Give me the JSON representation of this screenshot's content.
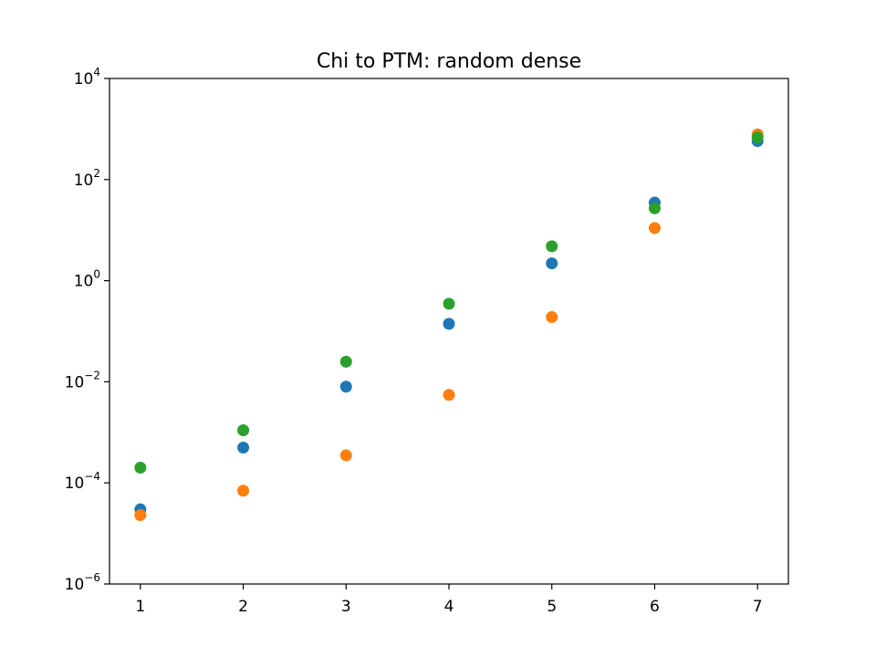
{
  "chart_data": {
    "type": "scatter",
    "title": "Chi to PTM: random dense",
    "xlabel": "",
    "ylabel": "",
    "x": [
      1,
      2,
      3,
      4,
      5,
      6,
      7
    ],
    "xlim": [
      0.7,
      7.3
    ],
    "ylim": [
      1e-06,
      10000
    ],
    "yscale": "log",
    "grid": false,
    "xticks": [
      {
        "value": 1,
        "label": "1"
      },
      {
        "value": 2,
        "label": "2"
      },
      {
        "value": 3,
        "label": "3"
      },
      {
        "value": 4,
        "label": "4"
      },
      {
        "value": 5,
        "label": "5"
      },
      {
        "value": 6,
        "label": "6"
      },
      {
        "value": 7,
        "label": "7"
      }
    ],
    "yticks": [
      {
        "value": 1e-06,
        "base": "10",
        "exp": "−6"
      },
      {
        "value": 0.0001,
        "base": "10",
        "exp": "−4"
      },
      {
        "value": 0.01,
        "base": "10",
        "exp": "−2"
      },
      {
        "value": 1,
        "base": "10",
        "exp": "0"
      },
      {
        "value": 100,
        "base": "10",
        "exp": "2"
      },
      {
        "value": 10000,
        "base": "10",
        "exp": "4"
      }
    ],
    "series": [
      {
        "color": "#1f77b4",
        "values": [
          3e-05,
          0.0005,
          0.008,
          0.14,
          2.2,
          35,
          580
        ]
      },
      {
        "color": "#ff7f0e",
        "values": [
          2.3e-05,
          7e-05,
          0.00035,
          0.0055,
          0.19,
          11,
          780
        ]
      },
      {
        "color": "#2ca02c",
        "values": [
          0.0002,
          0.0011,
          0.025,
          0.35,
          4.8,
          27,
          680
        ]
      }
    ]
  }
}
